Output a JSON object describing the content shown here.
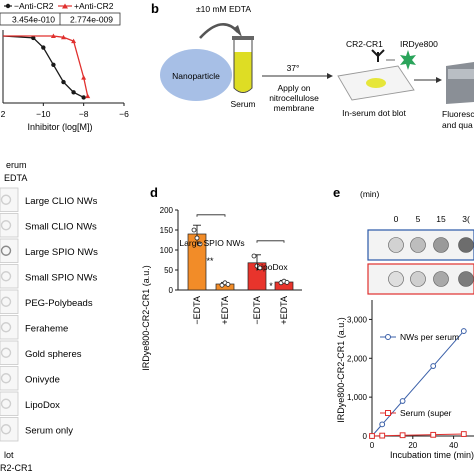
{
  "panel_a": {
    "legend": [
      {
        "label": "−Anti-CR2",
        "color": "#1a1a1a"
      },
      {
        "label": "+Anti-CR2",
        "color": "#e0302e"
      }
    ],
    "ic50_values": [
      "3.454e-010",
      "2.774e-009"
    ],
    "xlabel": "Inhibitor (log[M])",
    "x_ticks": [
      "−10",
      "−8",
      "−6"
    ],
    "x_tick_values": [
      -10,
      -8,
      -6
    ],
    "partial_tick_label": "2"
  },
  "panel_b": {
    "label": "b",
    "edta_label": "±10 mM EDTA",
    "nanoparticle_label": "Nanoparticle",
    "serum_label": "Serum",
    "temp_label": "37°",
    "apply_label_1": "Apply on",
    "apply_label_2": "nitrocellulose",
    "apply_label_3": "membrane",
    "cr2_label": "CR2-CR1",
    "irdye_label": "IRDye800",
    "dot_blot_label": "In-serum dot blot",
    "fluor_label_1": "Fluoresc",
    "fluor_label_2": "and qua"
  },
  "panel_c": {
    "header_1": "erum",
    "header_2": "EDTA",
    "rows": [
      "Large CLIO NWs",
      "Small CLIO NWs",
      "Large SPIO NWs",
      "Small SPIO NWs",
      "PEG-Polybeads",
      "Feraheme",
      "Gold spheres",
      "Onivyde",
      "LipoDox",
      "Serum only"
    ],
    "footer_1": "lot",
    "footer_2": "R2-CR1"
  },
  "panel_d": {
    "label": "d",
    "ylabel": "IRDye800-CR2-CR1 (a.u.)",
    "y_ticks": [
      "0",
      "50",
      "100",
      "150",
      "200"
    ],
    "group_1": "Large SPIO NWs",
    "group_2": "LipoDox",
    "sig_1": "**",
    "sig_2": "*"
  },
  "panel_e": {
    "label": "e",
    "time_header": "(min)",
    "time_labels": [
      "0",
      "5",
      "15",
      "3("
    ],
    "ylabel": "IRDye800-CR2-CR1 (a.u.)",
    "y_ticks": [
      "0",
      "1,000",
      "2,000",
      "3,000"
    ],
    "x_ticks": [
      "0",
      "20",
      "40"
    ],
    "xlabel": "Incubation time (min)",
    "legend_1": "NWs per serum",
    "legend_2": "Serum (super"
  },
  "chart_data": [
    {
      "type": "line",
      "title": "",
      "xlabel": "Inhibitor (log[M])",
      "ylabel": "",
      "xlim": [
        -12,
        -6
      ],
      "series": [
        {
          "name": "−Anti-CR2",
          "color": "#1a1a1a",
          "x": [
            -10.5,
            -10,
            -9.5,
            -9,
            -8.5,
            -8
          ],
          "y": [
            0.97,
            0.82,
            0.55,
            0.28,
            0.12,
            0.04
          ]
        },
        {
          "name": "+Anti-CR2",
          "color": "#e0302e",
          "x": [
            -9.5,
            -9,
            -8.5,
            -8,
            -7.8
          ],
          "y": [
            1.0,
            0.98,
            0.92,
            0.35,
            0.06
          ]
        }
      ]
    },
    {
      "type": "bar",
      "title": "",
      "ylabel": "IRDye800-CR2-CR1 (a.u.)",
      "ylim": [
        0,
        200
      ],
      "categories": [
        "−EDTA",
        "+EDTA",
        "−EDTA",
        "+EDTA"
      ],
      "values": [
        140,
        15,
        68,
        20
      ],
      "errors": [
        22,
        4,
        20,
        4
      ],
      "colors": [
        "#f28c28",
        "#f28c28",
        "#e8342c",
        "#e8342c"
      ],
      "groups": [
        "Large SPIO NWs",
        "Large SPIO NWs",
        "LipoDox",
        "LipoDox"
      ],
      "points": [
        [
          150,
          130,
          115
        ],
        [
          12,
          18,
          14
        ],
        [
          85,
          60,
          55
        ],
        [
          18,
          22,
          19
        ]
      ]
    },
    {
      "type": "scatter",
      "title": "",
      "xlabel": "Incubation time (min)",
      "ylabel": "IRDye800-CR2-CR1 (a.u.)",
      "xlim": [
        0,
        50
      ],
      "ylim": [
        0,
        3500
      ],
      "series": [
        {
          "name": "NWs per serum",
          "color": "#3a5fa8",
          "x": [
            0,
            5,
            15,
            30,
            45
          ],
          "y": [
            0,
            300,
            900,
            1800,
            2700
          ]
        },
        {
          "name": "Serum (super",
          "color": "#e0302e",
          "x": [
            0,
            5,
            15,
            30,
            45
          ],
          "y": [
            0,
            10,
            20,
            30,
            50
          ]
        }
      ]
    }
  ]
}
